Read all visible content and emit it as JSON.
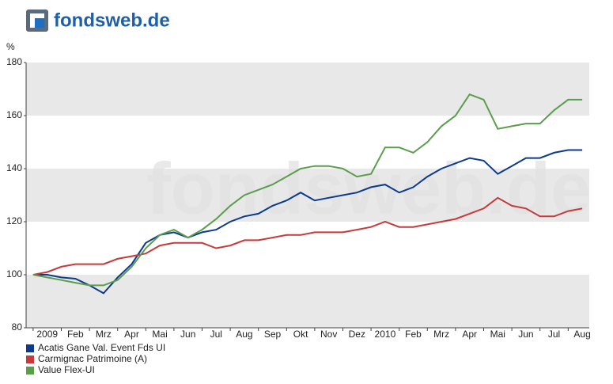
{
  "header": {
    "logo": "fondsweb.de"
  },
  "chart_data": {
    "type": "line",
    "y_label": "%",
    "categories": [
      null,
      "2009",
      null,
      "Feb",
      null,
      "Mrz",
      null,
      "Apr",
      null,
      "Mai",
      null,
      "Jun",
      null,
      "Jul",
      null,
      "Aug",
      null,
      "Sep",
      null,
      "Okt",
      null,
      "Nov",
      null,
      "Dez",
      null,
      "2010",
      null,
      "Feb",
      null,
      "Mrz",
      null,
      "Apr",
      null,
      "Mai",
      null,
      "Jun",
      null,
      "Jul",
      null,
      "Aug"
    ],
    "series": [
      {
        "name": "Acatis Gane Val. Event Fds UI",
        "color": "#0b3a8e",
        "values": [
          100,
          100,
          99,
          98.5,
          96,
          93,
          99,
          104,
          112,
          115,
          116,
          114,
          116,
          117,
          120,
          122,
          123,
          126,
          128,
          131,
          128,
          129,
          130,
          131,
          133,
          134,
          131,
          133,
          137,
          140,
          142,
          144,
          143,
          138,
          141,
          144,
          144,
          146,
          147,
          147
        ]
      },
      {
        "name": "Carmignac Patrimoine (A)",
        "color": "#c8393b",
        "values": [
          100,
          101,
          103,
          104,
          104,
          104,
          106,
          107,
          108,
          111,
          112,
          112,
          112,
          110,
          111,
          113,
          113,
          114,
          115,
          115,
          116,
          116,
          116,
          117,
          118,
          120,
          118,
          118,
          119,
          120,
          121,
          123,
          125,
          129,
          126,
          125,
          122,
          122,
          124,
          125
        ]
      },
      {
        "name": "Value Flex-UI",
        "color": "#5a9e4c",
        "values": [
          100,
          99,
          98,
          97,
          96,
          96,
          98,
          103,
          110,
          115,
          117,
          114,
          117,
          121,
          126,
          130,
          132,
          134,
          137,
          140,
          141,
          141,
          140,
          137,
          138,
          148,
          148,
          146,
          150,
          156,
          160,
          168,
          166,
          155,
          156,
          157,
          157,
          162,
          166,
          166
        ]
      }
    ],
    "ylim": [
      80,
      180
    ],
    "yticks": [
      80,
      100,
      120,
      140,
      160,
      180
    ],
    "grid": true,
    "legend": "bottom-left"
  }
}
